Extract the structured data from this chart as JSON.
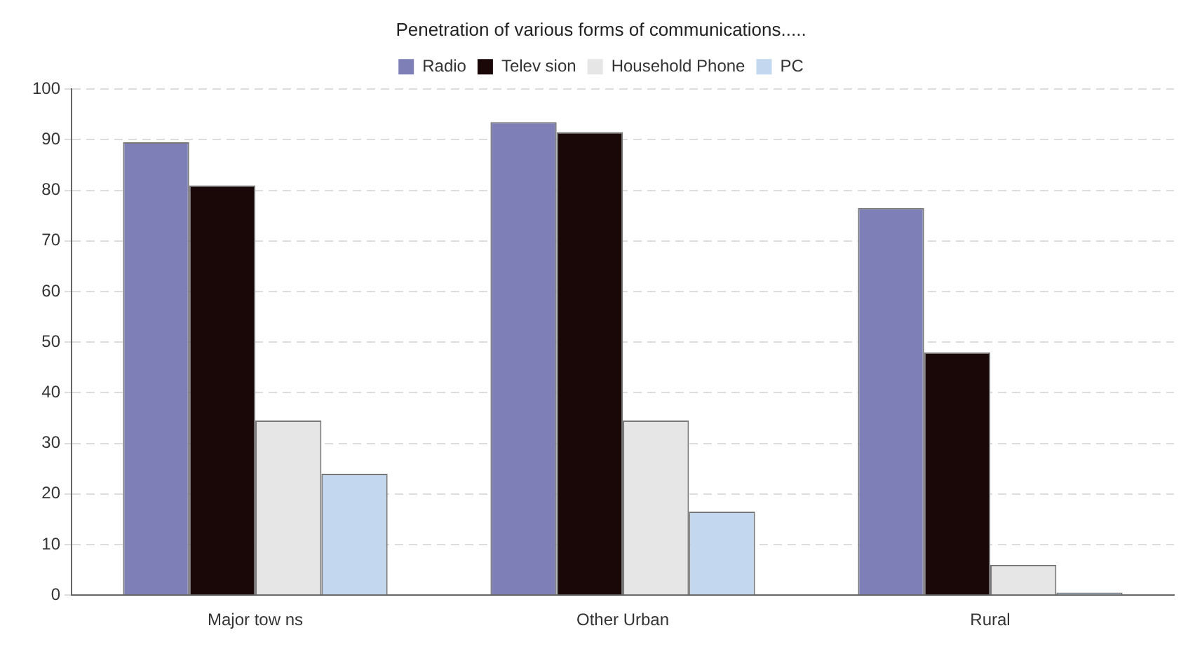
{
  "chart_data": {
    "type": "bar",
    "title": "Penetration of various forms of communications.....",
    "categories": [
      "Major tow ns",
      "Other Urban",
      "Rural"
    ],
    "series": [
      {
        "name": "Radio",
        "color": "#7f7fb8",
        "values": [
          89.5,
          93.5,
          76.5
        ]
      },
      {
        "name": "Telev sion",
        "color": "#1a0808",
        "values": [
          81,
          91.5,
          48
        ]
      },
      {
        "name": "Household Phone",
        "color": "#e6e6e6",
        "values": [
          34.5,
          34.5,
          6
        ]
      },
      {
        "name": "PC",
        "color": "#c3d8ee",
        "values": [
          24,
          16.5,
          0.5
        ]
      }
    ],
    "ylim": [
      0,
      100
    ],
    "yticks": [
      0,
      10,
      20,
      30,
      40,
      50,
      60,
      70,
      80,
      90,
      100
    ],
    "grid": "y",
    "legend": "top"
  }
}
